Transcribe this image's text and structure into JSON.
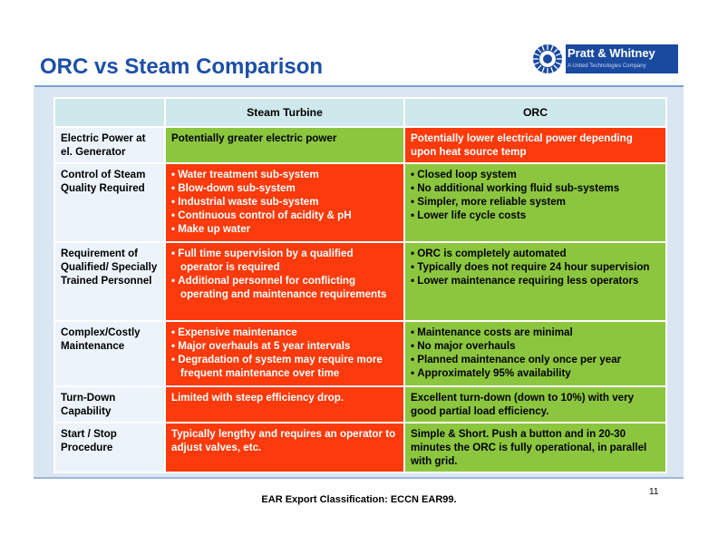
{
  "slide": {
    "title": "ORC vs Steam Comparison",
    "page_number": "11",
    "footer": "EAR Export Classification: ECCN EAR99."
  },
  "logo": {
    "name": "Pratt & Whitney",
    "tagline": "A United Technologies Company"
  },
  "table": {
    "headers": [
      "",
      "Steam Turbine",
      "ORC"
    ],
    "rows": [
      {
        "label": "Electric Power at el. Generator",
        "steam": [
          "Potentially greater electric power"
        ],
        "orc": [
          "Potentially lower electrical power depending upon heat source temp"
        ]
      },
      {
        "label": "Control of Steam Quality Required",
        "steam": [
          "Water treatment sub-system",
          "Blow-down sub-system",
          "Industrial waste sub-system",
          "Continuous control of acidity & pH",
          "Make up water"
        ],
        "orc": [
          "Closed loop system",
          "No additional working fluid sub-systems",
          "Simpler, more reliable system",
          "Lower life cycle costs"
        ]
      },
      {
        "label": "Requirement of Qualified/ Specially Trained Personnel",
        "steam": [
          "Full time supervision by a qualified operator is required",
          "Additional personnel for conflicting operating and maintenance requirements"
        ],
        "orc": [
          "ORC is completely automated",
          "Typically does not require 24 hour supervision",
          "Lower maintenance requiring less operators"
        ]
      },
      {
        "label": "Complex/Costly Maintenance",
        "steam": [
          "Expensive maintenance",
          "Major overhauls at 5 year intervals",
          "Degradation of system may require more frequent maintenance over time"
        ],
        "orc": [
          "Maintenance costs are minimal",
          "No major overhauls",
          "Planned maintenance only once per year",
          "Approximately 95% availability"
        ]
      },
      {
        "label": "Turn-Down Capability",
        "steam": [
          "Limited with steep efficiency drop."
        ],
        "orc": [
          "Excellent turn-down (down to 10%) with very good partial load efficiency."
        ]
      },
      {
        "label": "Start / Stop Procedure",
        "steam": [
          "Typically lengthy and requires an operator to adjust valves, etc."
        ],
        "orc": [
          "Simple & Short.  Push a button and in 20-30 minutes the ORC is fully operational, in parallel with grid."
        ]
      }
    ]
  },
  "colors": {
    "title": "#1c4fa6",
    "header_bg": "#cfe8ec",
    "label_bg": "#ecf3fb",
    "negative": "#fc3a0b",
    "positive": "#8cc63f",
    "logo_bg": "#1a4aa0"
  },
  "icons": [
    "pratt-whitney-logo-icon"
  ]
}
